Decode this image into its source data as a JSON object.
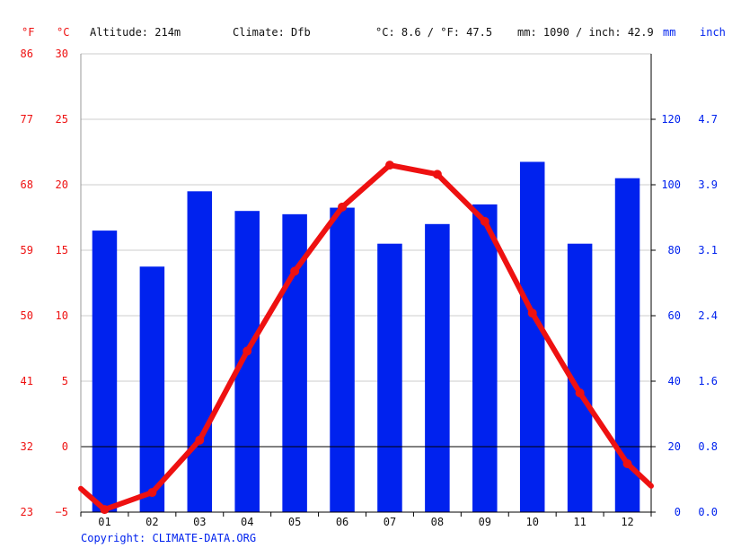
{
  "header": {
    "unit_f": "°F",
    "unit_c": "°C",
    "altitude": "Altitude: 214m",
    "climate": "Climate: Dfb",
    "avg_temp": "°C: 8.6 / °F: 47.5",
    "precip_total": "mm: 1090 / inch: 42.9",
    "unit_mm": "mm",
    "unit_inch": "inch"
  },
  "footer": {
    "copyright": "Copyright: CLIMATE-DATA.ORG"
  },
  "colors": {
    "temperature": "#ee1111",
    "precipitation": "#0022ee",
    "grid": "#cccccc",
    "zero_line": "#000000"
  },
  "chart_data": {
    "type": "bar+line",
    "categories": [
      "01",
      "02",
      "03",
      "04",
      "05",
      "06",
      "07",
      "08",
      "09",
      "10",
      "11",
      "12"
    ],
    "precip_axis": {
      "unit": "mm",
      "range": [
        0,
        140
      ],
      "ticks": [
        0,
        20,
        40,
        60,
        80,
        100,
        120
      ],
      "inch_ticks": [
        "0.0",
        "0.8",
        "1.6",
        "2.4",
        "3.1",
        "3.9",
        "4.7"
      ]
    },
    "temp_axis": {
      "unit": "°C",
      "range": [
        -5,
        30
      ],
      "ticks": [
        -5,
        0,
        5,
        10,
        15,
        20,
        25,
        30
      ],
      "f_ticks": [
        "23",
        "32",
        "41",
        "50",
        "59",
        "68",
        "77",
        "86"
      ]
    },
    "precipitation_mm": [
      86,
      75,
      98,
      92,
      91,
      93,
      82,
      88,
      94,
      107,
      82,
      102
    ],
    "temperature_c": [
      -4.8,
      -3.5,
      0.5,
      7.3,
      13.4,
      18.3,
      21.5,
      20.8,
      17.2,
      10.2,
      4.1,
      -1.3
    ],
    "line_edges_c": [
      -3.2,
      -3.0
    ]
  }
}
